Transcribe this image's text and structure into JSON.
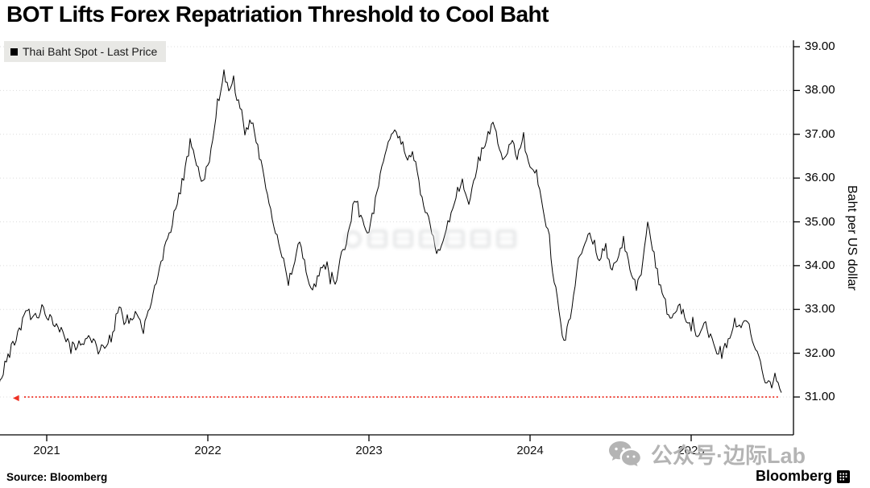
{
  "title": "BOT Lifts Forex Repatriation Threshold to Cool Baht",
  "legend": {
    "label": "Thai Baht Spot - Last Price"
  },
  "source": "Source: Bloomberg",
  "branding": {
    "bloomberg": "Bloomberg"
  },
  "watermark": {
    "bottom_right": "公众号·边际Lab"
  },
  "colors": {
    "line": "#000000",
    "threshold": "#ee3124",
    "grid": "#dcdcdc",
    "axis": "#000000",
    "legend_bg": "#e8e8e5",
    "watermark_gray": "#b4b4b4"
  },
  "chart_data": {
    "type": "line",
    "title": "BOT Lifts Forex Repatriation Threshold to Cool Baht",
    "ylabel": "Baht per US dollar",
    "xlabel": "",
    "ylim": [
      31.0,
      39.0
    ],
    "y_ticks": [
      "39.00",
      "38.00",
      "37.00",
      "36.00",
      "35.00",
      "34.00",
      "33.00",
      "32.00",
      "31.00"
    ],
    "x_ticks": [
      "2021",
      "2022",
      "2023",
      "2024",
      "2025"
    ],
    "grid": true,
    "legend_position": "top-left",
    "threshold_line": {
      "value": 31.0,
      "style": "dotted",
      "color": "#ee3124"
    },
    "series": [
      {
        "name": "Thai Baht Spot - Last Price",
        "points": [
          [
            2020.7,
            31.25
          ],
          [
            2020.73,
            31.6
          ],
          [
            2020.78,
            32.1
          ],
          [
            2020.83,
            32.5
          ],
          [
            2020.87,
            32.95
          ],
          [
            2020.92,
            32.8
          ],
          [
            2020.97,
            33.0
          ],
          [
            2021.05,
            32.7
          ],
          [
            2021.13,
            32.3
          ],
          [
            2021.18,
            32.1
          ],
          [
            2021.25,
            32.4
          ],
          [
            2021.33,
            32.05
          ],
          [
            2021.4,
            32.3
          ],
          [
            2021.45,
            33.0
          ],
          [
            2021.5,
            32.6
          ],
          [
            2021.55,
            33.05
          ],
          [
            2021.6,
            32.5
          ],
          [
            2021.65,
            33.25
          ],
          [
            2021.7,
            33.9
          ],
          [
            2021.75,
            34.6
          ],
          [
            2021.81,
            35.4
          ],
          [
            2021.86,
            36.2
          ],
          [
            2021.89,
            36.8
          ],
          [
            2021.93,
            36.35
          ],
          [
            2021.97,
            35.9
          ],
          [
            2022.02,
            36.6
          ],
          [
            2022.06,
            37.7
          ],
          [
            2022.1,
            38.4
          ],
          [
            2022.13,
            38.1
          ],
          [
            2022.16,
            38.25
          ],
          [
            2022.18,
            37.85
          ],
          [
            2022.21,
            37.5
          ],
          [
            2022.23,
            37.05
          ],
          [
            2022.27,
            37.3
          ],
          [
            2022.31,
            36.7
          ],
          [
            2022.36,
            35.85
          ],
          [
            2022.41,
            34.9
          ],
          [
            2022.46,
            34.2
          ],
          [
            2022.5,
            33.6
          ],
          [
            2022.53,
            34.0
          ],
          [
            2022.57,
            34.5
          ],
          [
            2022.61,
            33.9
          ],
          [
            2022.65,
            33.45
          ],
          [
            2022.69,
            33.8
          ],
          [
            2022.74,
            34.0
          ],
          [
            2022.79,
            33.6
          ],
          [
            2022.84,
            34.35
          ],
          [
            2022.87,
            34.7
          ],
          [
            2022.91,
            35.55
          ],
          [
            2022.95,
            35.1
          ],
          [
            2022.99,
            34.7
          ],
          [
            2023.02,
            35.1
          ],
          [
            2023.06,
            35.85
          ],
          [
            2023.11,
            36.75
          ],
          [
            2023.16,
            37.15
          ],
          [
            2023.2,
            36.85
          ],
          [
            2023.24,
            36.4
          ],
          [
            2023.27,
            36.7
          ],
          [
            2023.31,
            35.85
          ],
          [
            2023.35,
            35.3
          ],
          [
            2023.39,
            34.7
          ],
          [
            2023.43,
            34.15
          ],
          [
            2023.47,
            34.7
          ],
          [
            2023.51,
            35.15
          ],
          [
            2023.54,
            35.6
          ],
          [
            2023.58,
            35.9
          ],
          [
            2023.62,
            35.4
          ],
          [
            2023.66,
            36.05
          ],
          [
            2023.69,
            36.55
          ],
          [
            2023.73,
            36.9
          ],
          [
            2023.77,
            37.2
          ],
          [
            2023.81,
            36.7
          ],
          [
            2023.84,
            36.4
          ],
          [
            2023.88,
            36.85
          ],
          [
            2023.92,
            36.5
          ],
          [
            2023.96,
            36.8
          ],
          [
            2023.99,
            36.4
          ],
          [
            2024.03,
            36.1
          ],
          [
            2024.07,
            35.5
          ],
          [
            2024.11,
            34.75
          ],
          [
            2024.14,
            33.95
          ],
          [
            2024.18,
            33.05
          ],
          [
            2024.21,
            32.2
          ],
          [
            2024.25,
            32.85
          ],
          [
            2024.28,
            33.6
          ],
          [
            2024.32,
            34.3
          ],
          [
            2024.36,
            34.8
          ],
          [
            2024.4,
            34.5
          ],
          [
            2024.43,
            34.15
          ],
          [
            2024.47,
            34.4
          ],
          [
            2024.51,
            33.95
          ],
          [
            2024.55,
            34.3
          ],
          [
            2024.58,
            34.6
          ],
          [
            2024.62,
            33.95
          ],
          [
            2024.66,
            33.5
          ],
          [
            2024.7,
            34.0
          ],
          [
            2024.73,
            35.0
          ],
          [
            2024.77,
            34.2
          ],
          [
            2024.81,
            33.5
          ],
          [
            2024.85,
            33.0
          ],
          [
            2024.88,
            32.7
          ],
          [
            2024.92,
            33.1
          ],
          [
            2024.96,
            32.8
          ],
          [
            2025.0,
            32.6
          ],
          [
            2025.04,
            32.35
          ],
          [
            2025.08,
            32.7
          ],
          [
            2025.12,
            32.4
          ],
          [
            2025.15,
            32.15
          ],
          [
            2025.19,
            31.9
          ],
          [
            2025.23,
            32.35
          ],
          [
            2025.27,
            32.75
          ],
          [
            2025.3,
            32.6
          ],
          [
            2025.34,
            32.75
          ],
          [
            2025.38,
            32.35
          ],
          [
            2025.42,
            31.9
          ],
          [
            2025.45,
            31.45
          ],
          [
            2025.49,
            31.2
          ],
          [
            2025.52,
            31.45
          ],
          [
            2025.54,
            31.25
          ],
          [
            2025.56,
            31.1
          ]
        ]
      }
    ]
  }
}
